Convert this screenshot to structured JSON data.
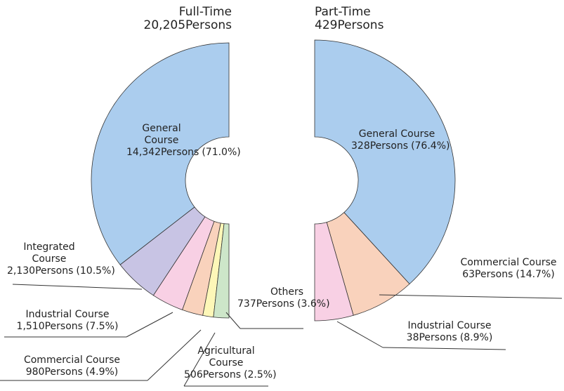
{
  "chart_data": [
    {
      "type": "pie",
      "half": "left",
      "title": "Full-Time",
      "subtitle": "20,205Persons",
      "categories": [
        "General Course",
        "Integrated Course",
        "Industrial Course",
        "Commercial Course",
        "Agricultural Course",
        "Others"
      ],
      "values": [
        14342,
        2130,
        1510,
        980,
        506,
        737
      ],
      "value_labels": [
        "14,342Persons",
        "2,130Persons",
        "1,510Persons",
        "980Persons",
        "506Persons",
        "737Persons"
      ],
      "percents": [
        71.0,
        10.5,
        7.5,
        4.9,
        2.5,
        3.6
      ],
      "percent_labels": [
        "(71.0%)",
        "(10.5%)",
        "(7.5%)",
        "(4.9%)",
        "(2.5%)",
        "(3.6%)"
      ],
      "colors": [
        "#abcdee",
        "#c8c4e4",
        "#f8d0e4",
        "#f9d2bc",
        "#fdf7b8",
        "#cde6c9"
      ]
    },
    {
      "type": "pie",
      "half": "right",
      "title": "Part-Time",
      "subtitle": "429Persons",
      "categories": [
        "General Course",
        "Commercial Course",
        "Industrial Course"
      ],
      "values": [
        328,
        63,
        38
      ],
      "value_labels": [
        "328Persons",
        "63Persons",
        "38Persons"
      ],
      "percents": [
        76.4,
        14.7,
        8.9
      ],
      "percent_labels": [
        "(76.4%)",
        "(14.7%)",
        "(8.9%)"
      ],
      "colors": [
        "#abcdee",
        "#f9d2bc",
        "#f8d0e4"
      ]
    }
  ]
}
